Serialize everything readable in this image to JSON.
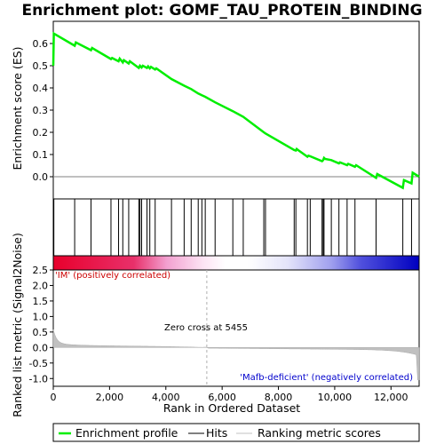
{
  "chart_data": {
    "type": "line",
    "title": "Enrichment plot: GOMF_TAU_PROTEIN_BINDING",
    "xlabel": "Rank in Ordered Dataset",
    "ylabel_top": "Enrichment score (ES)",
    "ylabel_bottom": "Ranked list metric (Signal2Noise)",
    "xlim": [
      0,
      13000
    ],
    "x_ticks": [
      0,
      2000,
      4000,
      6000,
      8000,
      10000,
      12000
    ],
    "x_tick_labels": [
      "0",
      "2,000",
      "4,000",
      "6,000",
      "8,000",
      "10,000",
      "12,000"
    ],
    "es_ylim": [
      -0.1,
      0.7
    ],
    "es_ticks": [
      0.0,
      0.1,
      0.2,
      0.3,
      0.4,
      0.5,
      0.6
    ],
    "es_tick_labels": [
      "0.0",
      "0.1",
      "0.2",
      "0.3",
      "0.4",
      "0.5",
      "0.6"
    ],
    "metric_ylim": [
      -1.25,
      2.5
    ],
    "metric_ticks": [
      -1.0,
      -0.5,
      0.0,
      0.5,
      1.0,
      1.5,
      2.0,
      2.5
    ],
    "metric_tick_labels": [
      "-1.0",
      "-0.5",
      "0.0",
      "0.5",
      "1.0",
      "1.5",
      "2.0",
      "2.5"
    ],
    "series": [
      {
        "name": "Enrichment profile",
        "color": "#00ee00",
        "x": [
          0,
          20,
          760,
          800,
          1340,
          1380,
          2050,
          2090,
          2320,
          2360,
          2470,
          2510,
          2680,
          2720,
          3040,
          3080,
          3140,
          3180,
          3330,
          3370,
          3430,
          3470,
          3620,
          3660,
          4200,
          4650,
          4900,
          5150,
          5280,
          5400,
          5750,
          6380,
          6750,
          7480,
          7540,
          8560,
          8620,
          8650,
          8700,
          9030,
          9070,
          9130,
          9550,
          9590,
          9620,
          9660,
          9880,
          10150,
          10190,
          10440,
          10480,
          10720,
          10760,
          11470,
          11510,
          12420,
          12460,
          12730,
          12770,
          13000
        ],
        "y": [
          0.5,
          0.645,
          0.59,
          0.605,
          0.57,
          0.58,
          0.53,
          0.535,
          0.52,
          0.532,
          0.515,
          0.525,
          0.51,
          0.52,
          0.49,
          0.5,
          0.492,
          0.5,
          0.49,
          0.497,
          0.488,
          0.495,
          0.483,
          0.488,
          0.44,
          0.41,
          0.395,
          0.375,
          0.367,
          0.36,
          0.335,
          0.295,
          0.27,
          0.2,
          0.195,
          0.12,
          0.118,
          0.125,
          0.12,
          0.09,
          0.095,
          0.092,
          0.07,
          0.075,
          0.085,
          0.08,
          0.075,
          0.06,
          0.065,
          0.052,
          0.058,
          0.045,
          0.052,
          -0.005,
          0.012,
          -0.05,
          -0.015,
          -0.03,
          0.018,
          0.0
        ]
      }
    ],
    "hits": [
      20,
      760,
      1340,
      2050,
      2320,
      2470,
      2680,
      3040,
      3080,
      3140,
      3330,
      3430,
      3620,
      4200,
      4650,
      4900,
      5150,
      5280,
      5400,
      5750,
      6380,
      6750,
      7480,
      7540,
      8560,
      8620,
      9030,
      9130,
      9550,
      9590,
      9620,
      9880,
      10150,
      10440,
      10720,
      11470,
      12420,
      12730
    ],
    "zero_cross": 5455,
    "annotations": {
      "zero_cross_label": "Zero cross at 5455",
      "positive_label": "'IM' (positively correlated)",
      "negative_label": "'Mafb-deficient' (negatively correlated)"
    },
    "legend": {
      "placement": "bottom",
      "items": [
        {
          "label": "Enrichment profile",
          "color": "#00ee00"
        },
        {
          "label": "Hits",
          "color": "#000000"
        },
        {
          "label": "Ranking metric scores",
          "color": "#c0c0c0"
        }
      ]
    },
    "colors": {
      "positive_band": "#e8002c",
      "neutral_band": "#ffffff",
      "negative_band": "#0000c0",
      "positive_text": "#cc0000",
      "negative_text": "#0000cc",
      "metric_fill": "#c0c0c0"
    }
  }
}
